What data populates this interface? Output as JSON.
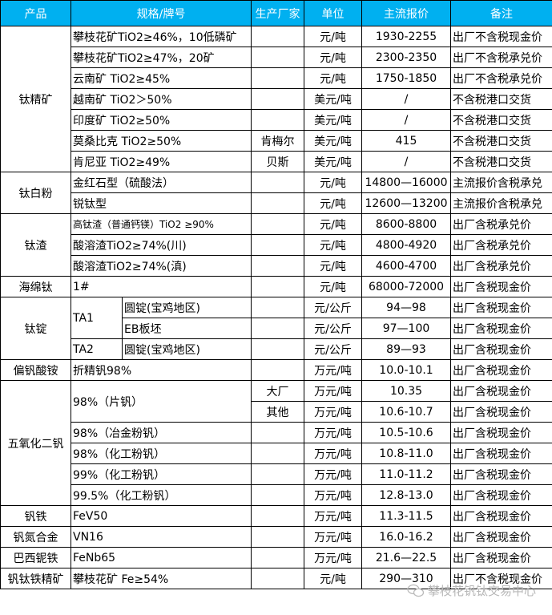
{
  "headers": [
    "产品",
    "规格/牌号",
    "生产厂家",
    "单位",
    "主流报价",
    "备注"
  ],
  "groups": [
    {
      "product": "钛精矿",
      "rows": [
        {
          "spec": "攀枝花矿TiO2≥46%，10低磷矿",
          "producer": "",
          "unit": "元/吨",
          "price": "1930-2255",
          "note": "出厂不含税现金价"
        },
        {
          "spec": "攀枝花矿TiO2≥47%，20矿",
          "producer": "",
          "unit": "元/吨",
          "price": "2300-2350",
          "note": "出厂不含税承兑价"
        },
        {
          "spec": "云南矿 TiO2≥45%",
          "producer": "",
          "unit": "元/吨",
          "price": "1750-1850",
          "note": "出厂不含税承兑价"
        },
        {
          "spec": "越南矿 TiO2＞50%",
          "producer": "",
          "unit": "美元/吨",
          "price": "/",
          "note": "不含税港口交货"
        },
        {
          "spec": "印度矿 TiO2≥50%",
          "producer": "",
          "unit": "美元/吨",
          "price": "/",
          "note": "不含税港口交货"
        },
        {
          "spec": "莫桑比克 TiO2≥50%",
          "producer": "肯梅尔",
          "unit": "美元/吨",
          "price": "415",
          "note": "不含税港口交货"
        },
        {
          "spec": "肯尼亚 TiO2≥49%",
          "producer": "贝斯",
          "unit": "美元/吨",
          "price": "/",
          "note": "不含税港口交货"
        }
      ]
    },
    {
      "product": "钛白粉",
      "rows": [
        {
          "spec": "金红石型（硫酸法）",
          "producer": "",
          "unit": "元/吨",
          "price": "14800—16000",
          "note": "主流报价含税承兑"
        },
        {
          "spec": "锐钛型",
          "producer": "",
          "unit": "元/吨",
          "price": "12600—13200",
          "note": "主流报价含税承兑"
        }
      ]
    },
    {
      "product": "钛渣",
      "rows": [
        {
          "spec": "高钛渣（普通钙镁）TiO2 ≥90%",
          "small": true,
          "producer": "",
          "unit": "元/吨",
          "price": "8600-8800",
          "note": "出厂含税承兑价"
        },
        {
          "spec": "酸溶渣TiO2≥74%(川)",
          "producer": "",
          "unit": "元/吨",
          "price": "4800-4920",
          "note": "出厂含税承兑价"
        },
        {
          "spec": "酸溶渣TiO2≥74%(滇)",
          "producer": "",
          "unit": "元/吨",
          "price": "4600-4700",
          "note": "出厂含税承兑价"
        }
      ]
    },
    {
      "product": "海绵钛",
      "rows": [
        {
          "spec": "1#",
          "producer": "",
          "unit": "元/吨",
          "price": "68000-72000",
          "note": "出厂含税现金价"
        }
      ]
    },
    {
      "product": "钛锭",
      "rows": [
        {
          "spec": "TA1",
          "span": 2,
          "sub": "圆锭(宝鸡地区)",
          "producer": "",
          "unit": "元/公斤",
          "price": "94—98",
          "note": "出厂含税现金价"
        },
        {
          "sub": "EB板坯",
          "producer": "",
          "unit": "元/公斤",
          "price": "97—100",
          "note": "出厂含税现金价"
        },
        {
          "spec": "TA2",
          "sub": "圆锭(宝鸡地区)",
          "producer": "",
          "unit": "元/公斤",
          "price": "89—93",
          "note": "出厂含税现金价"
        }
      ]
    },
    {
      "product": "偏钒酸铵",
      "rows": [
        {
          "spec": "折精钒98%",
          "producer": "",
          "unit": "万元/吨",
          "price": "10.0-10.1",
          "note": "出厂含税现金价"
        }
      ]
    },
    {
      "product": "五氧化二钒",
      "rows": [
        {
          "spec": "98%（片钒）",
          "span": 2,
          "producer": "大厂",
          "unit": "万元/吨",
          "price": "10.35",
          "note": "出厂含税现金价"
        },
        {
          "producer": "其他",
          "unit": "万元/吨",
          "price": "10.6-10.7",
          "note": "出厂含税现金价"
        },
        {
          "spec": "98%（冶金粉钒）",
          "producer": "",
          "unit": "万元/吨",
          "price": "10.5-10.6",
          "note": "出厂含税现金价"
        },
        {
          "spec": "98%（化工粉钒）",
          "producer": "",
          "unit": "万元/吨",
          "price": "10.8-11.0",
          "note": "出厂含税现金价"
        },
        {
          "spec": "99%（化工粉钒）",
          "producer": "",
          "unit": "万元/吨",
          "price": "11.0-11.2",
          "note": "出厂含税现金价"
        },
        {
          "spec": "99.5%（化工粉钒）",
          "producer": "",
          "unit": "万元/吨",
          "price": "12.8-13.0",
          "note": "出厂含税现金价"
        }
      ]
    },
    {
      "product": "钒铁",
      "rows": [
        {
          "spec": "FeV50",
          "producer": "",
          "unit": "万元/吨",
          "price": "11.3-11.5",
          "note": "出厂含税现金价"
        }
      ]
    },
    {
      "product": "钒氮合金",
      "rows": [
        {
          "spec": "VN16",
          "producer": "",
          "unit": "万元/吨",
          "price": "16.0-16.2",
          "note": "出厂含税现金价"
        }
      ]
    },
    {
      "product": "巴西铌铁",
      "rows": [
        {
          "spec": "FeNb65",
          "producer": "",
          "unit": "万元/吨",
          "price": "21.6—22.5",
          "note": "出厂含税现金价"
        }
      ]
    },
    {
      "product": "钒钛铁精矿",
      "rows": [
        {
          "spec": "攀枝花矿 Fe≥54%",
          "producer": "",
          "unit": "元/吨",
          "price": "290—310",
          "note": "出厂不含税现金价"
        }
      ]
    }
  ],
  "watermark": {
    "text": "攀枝花钒钛交易中心",
    "icon": "wechat-icon"
  },
  "colors": {
    "header_bg": "#00b0f0",
    "header_text": "#ffffff"
  }
}
